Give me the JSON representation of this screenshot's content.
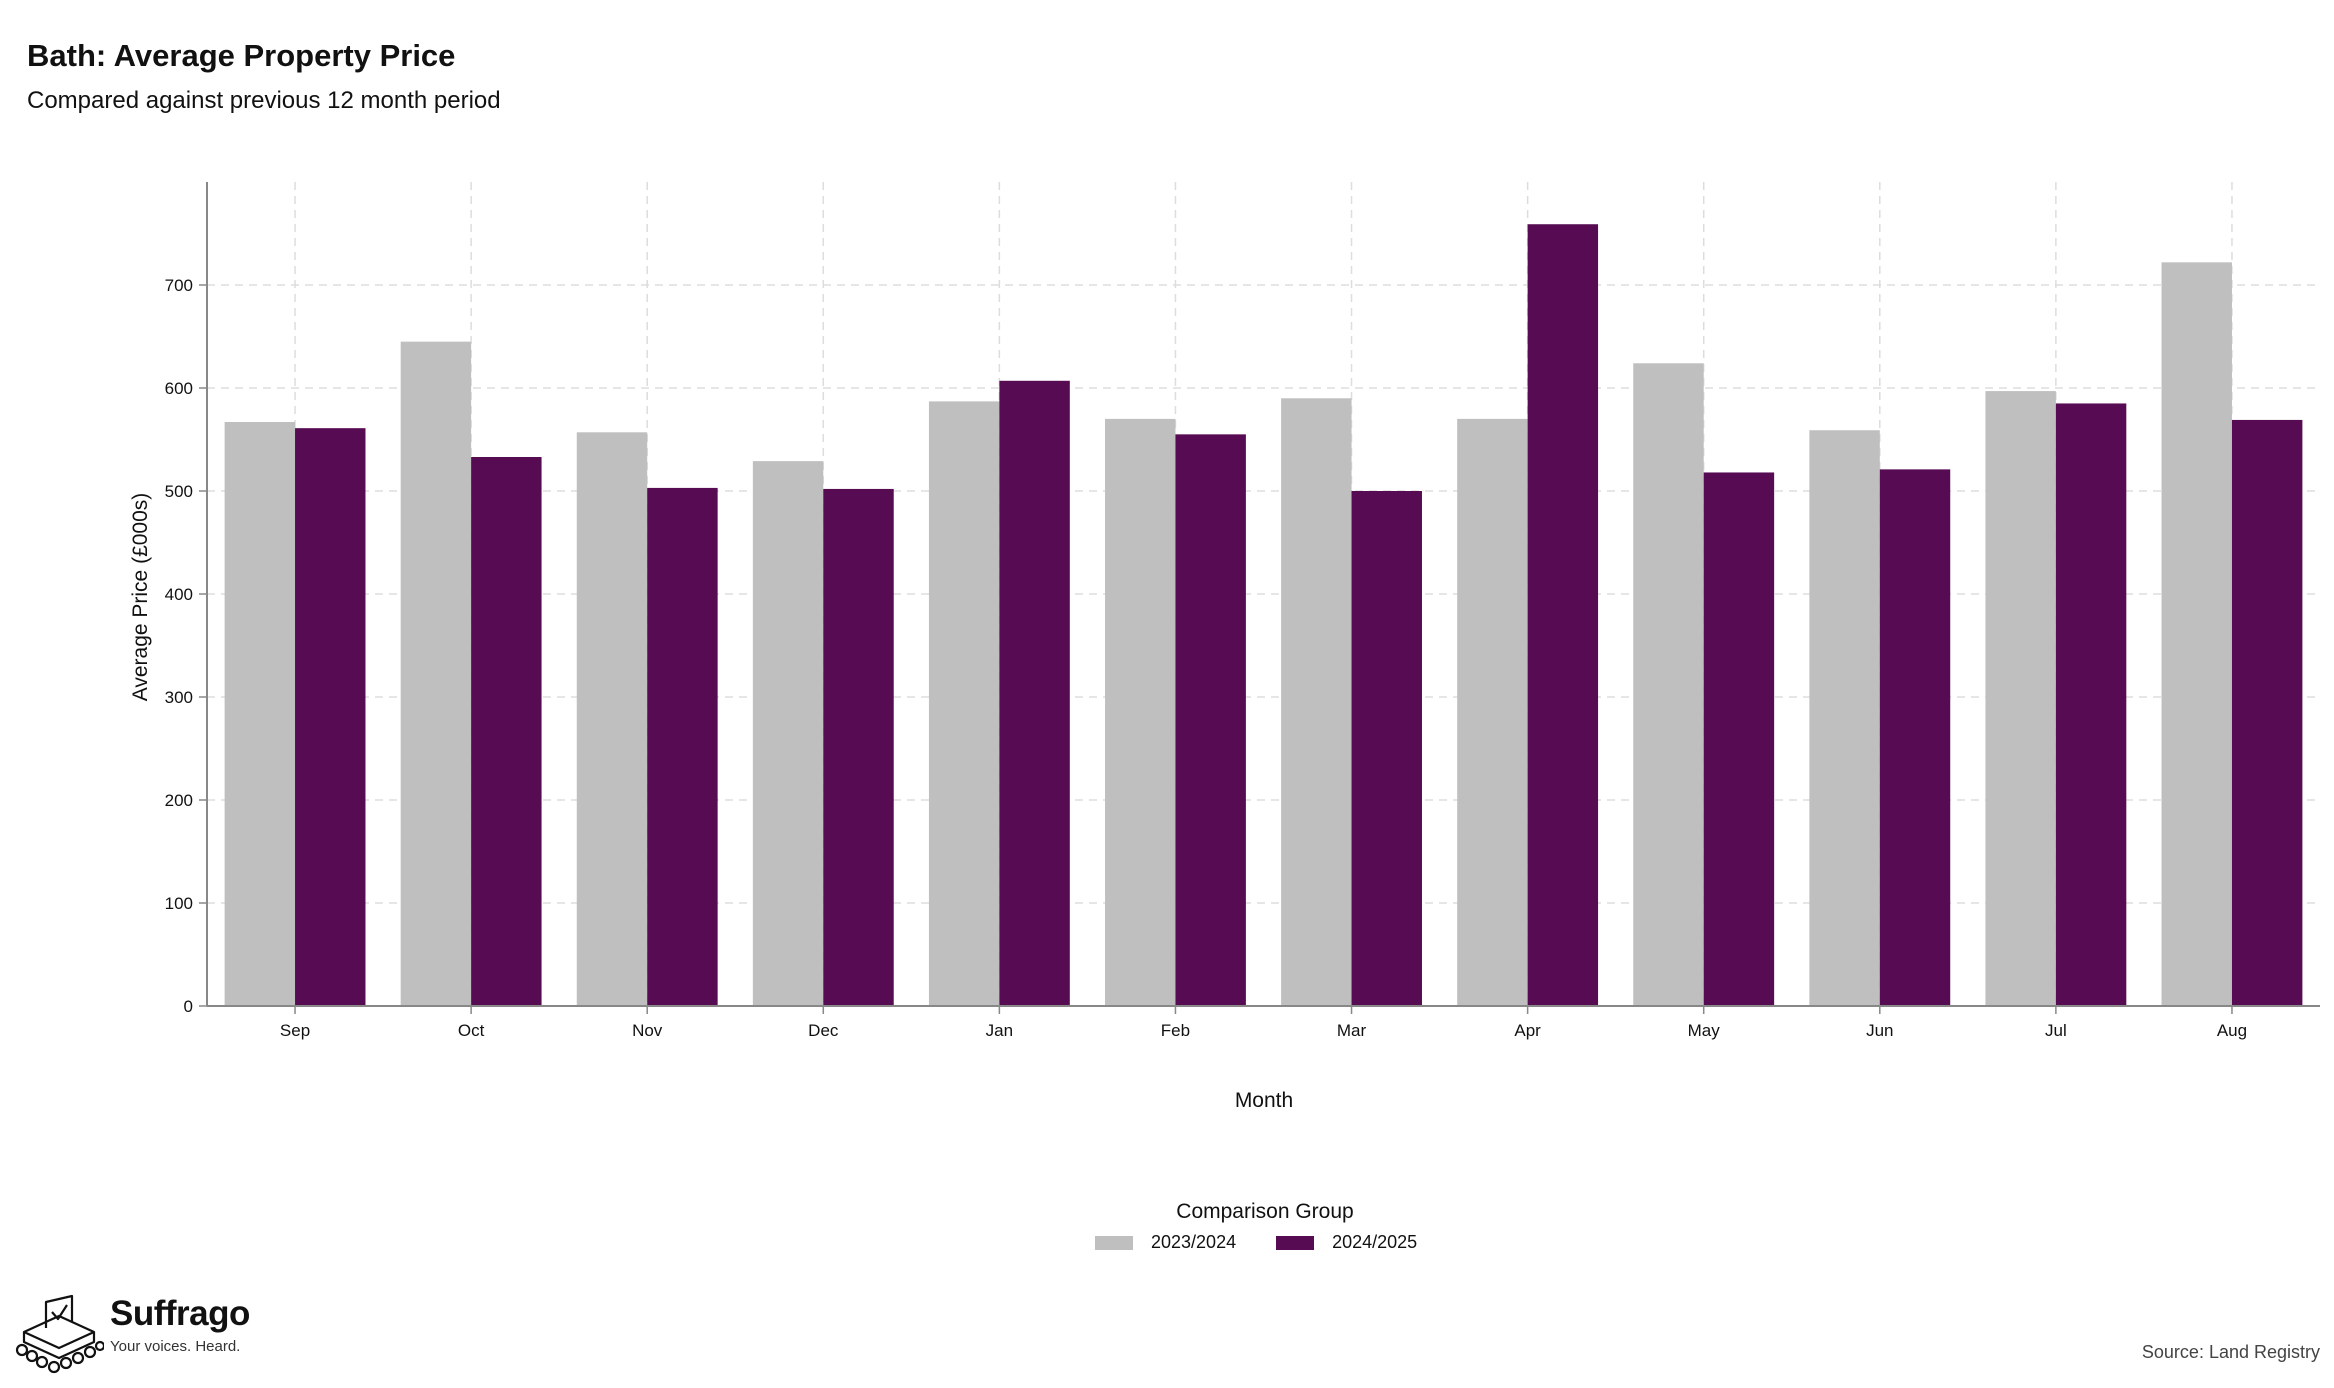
{
  "header": {
    "title": "Bath: Average Property Price",
    "subtitle": "Compared against previous 12 month period"
  },
  "colors": {
    "series_2023_2024": "#bfbfbf",
    "series_2024_2025": "#560b52"
  },
  "chart_data": {
    "type": "bar",
    "title": "Bath: Average Property Price",
    "subtitle": "Compared against previous 12 month period",
    "xlabel": "Month",
    "ylabel": "Average Price (£000s)",
    "categories": [
      "Sep",
      "Oct",
      "Nov",
      "Dec",
      "Jan",
      "Feb",
      "Mar",
      "Apr",
      "May",
      "Jun",
      "Jul",
      "Aug"
    ],
    "series": [
      {
        "name": "2023/2024",
        "values": [
          567,
          645,
          557,
          529,
          587,
          570,
          590,
          570,
          624,
          559,
          597,
          722
        ]
      },
      {
        "name": "2024/2025",
        "values": [
          561,
          533,
          503,
          502,
          607,
          555,
          500,
          759,
          518,
          521,
          585,
          569
        ]
      }
    ],
    "ylim": [
      0,
      800
    ],
    "yticks": [
      0,
      100,
      200,
      300,
      400,
      500,
      600,
      700
    ],
    "grid": true,
    "legend": {
      "title": "Comparison Group",
      "position": "bottom"
    }
  },
  "footer": {
    "brand": "Suffrago",
    "tagline": "Your voices. Heard.",
    "source": "Source: Land Registry"
  }
}
